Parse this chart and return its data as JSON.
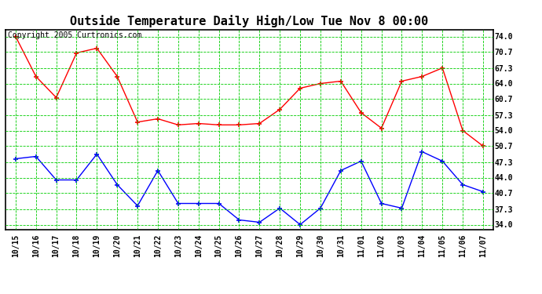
{
  "title": "Outside Temperature Daily High/Low Tue Nov 8 00:00",
  "copyright": "Copyright 2005 Curtronics.com",
  "labels": [
    "10/15",
    "10/16",
    "10/17",
    "10/18",
    "10/19",
    "10/20",
    "10/21",
    "10/22",
    "10/23",
    "10/24",
    "10/25",
    "10/26",
    "10/27",
    "10/28",
    "10/29",
    "10/30",
    "10/31",
    "11/01",
    "11/02",
    "11/03",
    "11/04",
    "11/05",
    "11/06",
    "11/07"
  ],
  "high_temps": [
    74.0,
    65.5,
    61.0,
    70.5,
    71.5,
    65.5,
    55.8,
    56.5,
    55.2,
    55.5,
    55.2,
    55.2,
    55.5,
    58.5,
    63.0,
    64.0,
    64.5,
    57.8,
    54.5,
    64.5,
    65.5,
    67.3,
    54.0,
    50.7
  ],
  "low_temps": [
    48.0,
    48.5,
    43.5,
    43.5,
    49.0,
    42.5,
    38.0,
    45.5,
    38.5,
    38.5,
    38.5,
    35.0,
    34.5,
    37.5,
    34.0,
    37.5,
    45.5,
    47.5,
    38.5,
    37.5,
    49.5,
    47.5,
    42.5,
    41.0
  ],
  "yticks": [
    34.0,
    37.3,
    40.7,
    44.0,
    47.3,
    50.7,
    54.0,
    57.3,
    60.7,
    64.0,
    67.3,
    70.7,
    74.0
  ],
  "ylim": [
    33.0,
    75.5
  ],
  "high_color": "#ff0000",
  "low_color": "#0000ff",
  "grid_color": "#00cc00",
  "bg_color": "#ffffff",
  "title_fontsize": 11,
  "axis_fontsize": 7,
  "copyright_fontsize": 7
}
